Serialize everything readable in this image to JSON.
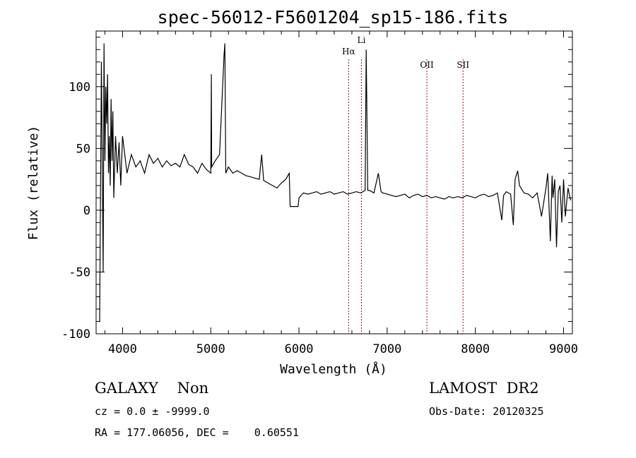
{
  "chart_data": {
    "type": "line",
    "title": "spec-56012-F5601204_sp15-186.fits",
    "xlabel": "Wavelength (Å)",
    "ylabel": "Flux (relative)",
    "xlim": [
      3700,
      9100
    ],
    "ylim": [
      -100,
      145
    ],
    "xticks": [
      4000,
      5000,
      6000,
      7000,
      8000,
      9000
    ],
    "yticks": [
      -100,
      -50,
      0,
      50,
      100
    ],
    "grid": false,
    "line_color": "#000000",
    "marker_color": "#8b1a1a",
    "lines": [
      {
        "label": "Hα",
        "wavelength": 6563
      },
      {
        "label": "Li",
        "wavelength": 6708
      },
      {
        "label": "OII",
        "wavelength": 7450
      },
      {
        "label": "SII",
        "wavelength": 7860
      }
    ],
    "series": [
      {
        "x": [
          3740,
          3760,
          3780,
          3790,
          3800,
          3810,
          3820,
          3830,
          3840,
          3850,
          3860,
          3870,
          3880,
          3890,
          3900,
          3920,
          3940,
          3960,
          3980,
          4000,
          4050,
          4100,
          4150,
          4200,
          4250,
          4300,
          4350,
          4400,
          4450,
          4500,
          4550,
          4600,
          4650,
          4700,
          4750,
          4800,
          4850,
          4900,
          4950,
          5000,
          5007,
          5010,
          5050,
          5100,
          5150,
          5160,
          5170,
          5200,
          5250,
          5300,
          5350,
          5400,
          5450,
          5500,
          5550,
          5577,
          5600,
          5650,
          5700,
          5750,
          5800,
          5850,
          5890,
          5900,
          5910,
          5990,
          6000,
          6050,
          6100,
          6150,
          6200,
          6250,
          6300,
          6350,
          6400,
          6450,
          6500,
          6550,
          6600,
          6650,
          6700,
          6750,
          6762,
          6780,
          6800,
          6850,
          6900,
          6930,
          6950,
          7000,
          7050,
          7100,
          7150,
          7200,
          7250,
          7300,
          7350,
          7400,
          7450,
          7500,
          7550,
          7600,
          7650,
          7700,
          7750,
          7800,
          7850,
          7900,
          7950,
          8000,
          8050,
          8100,
          8150,
          8200,
          8250,
          8300,
          8320,
          8350,
          8400,
          8430,
          8450,
          8480,
          8500,
          8550,
          8600,
          8650,
          8700,
          8750,
          8800,
          8820,
          8850,
          8870,
          8880,
          8900,
          8920,
          8940,
          8960,
          8980,
          9000,
          9020,
          9050,
          9080
        ],
        "y": [
          -90,
          120,
          -50,
          135,
          40,
          100,
          70,
          110,
          30,
          60,
          20,
          90,
          40,
          80,
          10,
          60,
          30,
          55,
          20,
          60,
          30,
          45,
          35,
          40,
          30,
          45,
          38,
          42,
          35,
          40,
          36,
          38,
          35,
          45,
          37,
          35,
          30,
          38,
          33,
          30,
          110,
          35,
          40,
          45,
          125,
          135,
          30,
          35,
          30,
          32,
          30,
          28,
          27,
          26,
          25,
          45,
          24,
          22,
          20,
          18,
          22,
          25,
          30,
          3,
          3,
          3,
          10,
          14,
          13,
          14,
          15,
          13,
          14,
          15,
          13,
          14,
          15,
          13,
          14,
          15,
          14,
          16,
          130,
          16,
          16,
          14,
          30,
          15,
          14,
          13,
          12,
          11,
          12,
          13,
          10,
          12,
          13,
          11,
          12,
          10,
          11,
          10,
          9,
          11,
          10,
          11,
          10,
          12,
          11,
          10,
          12,
          13,
          11,
          12,
          14,
          -8,
          12,
          15,
          13,
          -12,
          25,
          32,
          20,
          14,
          13,
          10,
          14,
          -5,
          18,
          30,
          -25,
          28,
          10,
          25,
          -30,
          15,
          20,
          -10,
          25,
          -5,
          18,
          8
        ]
      }
    ]
  },
  "footer": {
    "obj_class": "GALAXY    Non",
    "survey": "LAMOST  DR2",
    "cz": "cz = 0.0 ± -9999.0",
    "obs_date": "Obs-Date: 20120325",
    "radec": "RA = 177.06056, DEC =    0.60551"
  }
}
